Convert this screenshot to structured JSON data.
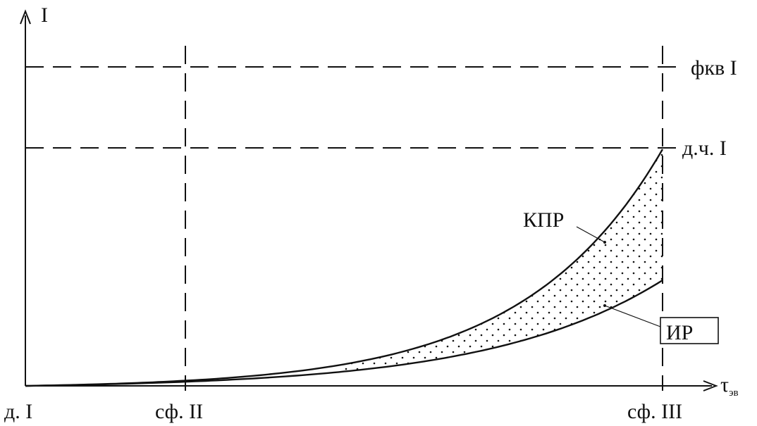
{
  "diagram": {
    "y_axis_label": "I",
    "x_axis_label": "τ",
    "x_axis_label_sub": "эв",
    "x_tick_labels": {
      "origin": "д. I",
      "mid": "сф. II",
      "end": "сф. III"
    },
    "level_labels": {
      "upper": "фкв I",
      "lower": "д.ч. I"
    },
    "curve_labels": {
      "upper_curve": "КПР",
      "lower_curve": "ИР"
    }
  }
}
